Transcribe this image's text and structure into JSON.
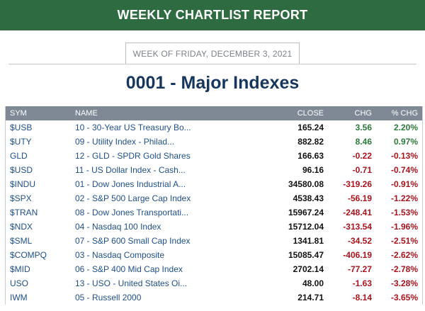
{
  "header": {
    "title": "WEEKLY CHARTLIST REPORT"
  },
  "week": {
    "label": "WEEK OF FRIDAY, DECEMBER 3, 2021"
  },
  "list_title": "0001 - Major Indexes",
  "columns": {
    "sym": "SYM",
    "name": "NAME",
    "close": "CLOSE",
    "chg": "CHG",
    "pct": "% CHG"
  },
  "colors": {
    "header_bg": "#2e6b41",
    "title": "#17365d",
    "link": "#1f4f89",
    "positive": "#2c7a3a",
    "negative": "#a8141e"
  },
  "rows": [
    {
      "sym": "$USB",
      "name": "10 - 30-Year US Treasury Bo...",
      "close": "165.24",
      "chg": "3.56",
      "pct": "2.20%",
      "dir": "pos"
    },
    {
      "sym": "$UTY",
      "name": "09 - Utility Index - Philad...",
      "close": "882.82",
      "chg": "8.46",
      "pct": "0.97%",
      "dir": "pos"
    },
    {
      "sym": "GLD",
      "name": "12 - GLD - SPDR Gold Shares",
      "close": "166.63",
      "chg": "-0.22",
      "pct": "-0.13%",
      "dir": "neg"
    },
    {
      "sym": "$USD",
      "name": "11 - US Dollar Index - Cash...",
      "close": "96.16",
      "chg": "-0.71",
      "pct": "-0.74%",
      "dir": "neg"
    },
    {
      "sym": "$INDU",
      "name": "01 - Dow Jones Industrial A...",
      "close": "34580.08",
      "chg": "-319.26",
      "pct": "-0.91%",
      "dir": "neg"
    },
    {
      "sym": "$SPX",
      "name": "02 - S&P 500 Large Cap Index",
      "close": "4538.43",
      "chg": "-56.19",
      "pct": "-1.22%",
      "dir": "neg"
    },
    {
      "sym": "$TRAN",
      "name": "08 - Dow Jones Transportati...",
      "close": "15967.24",
      "chg": "-248.41",
      "pct": "-1.53%",
      "dir": "neg"
    },
    {
      "sym": "$NDX",
      "name": "04 - Nasdaq 100 Index",
      "close": "15712.04",
      "chg": "-313.54",
      "pct": "-1.96%",
      "dir": "neg"
    },
    {
      "sym": "$SML",
      "name": "07 - S&P 600 Small Cap Index",
      "close": "1341.81",
      "chg": "-34.52",
      "pct": "-2.51%",
      "dir": "neg"
    },
    {
      "sym": "$COMPQ",
      "name": "03 - Nasdaq Composite",
      "close": "15085.47",
      "chg": "-406.19",
      "pct": "-2.62%",
      "dir": "neg"
    },
    {
      "sym": "$MID",
      "name": "06 - S&P 400 Mid Cap Index",
      "close": "2702.14",
      "chg": "-77.27",
      "pct": "-2.78%",
      "dir": "neg"
    },
    {
      "sym": "USO",
      "name": "13 - USO - United States Oi...",
      "close": "48.00",
      "chg": "-1.63",
      "pct": "-3.28%",
      "dir": "neg"
    },
    {
      "sym": "IWM",
      "name": "05 - Russell 2000",
      "close": "214.71",
      "chg": "-8.14",
      "pct": "-3.65%",
      "dir": "neg"
    }
  ]
}
